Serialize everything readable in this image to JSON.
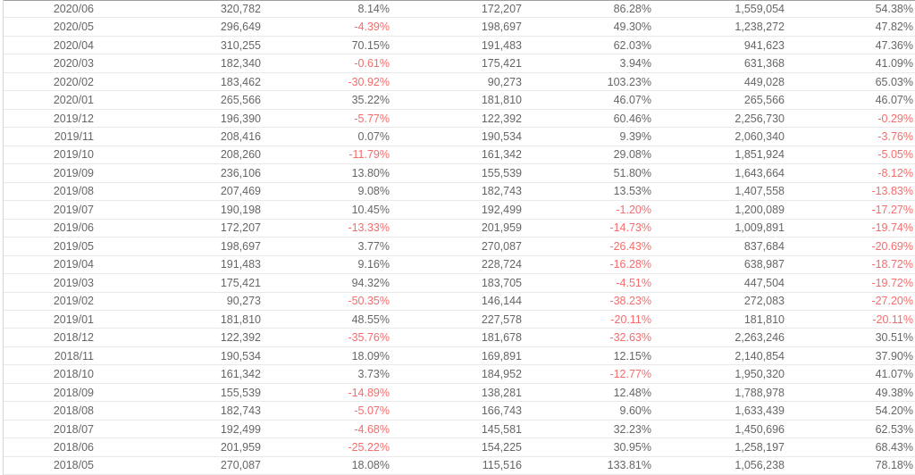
{
  "colors": {
    "text": "#666666",
    "negative_percent": "#f56c6c",
    "row_divider": "#e9e9e9",
    "left_border": "#d6d6d6",
    "top_rule": "#a0a0a0",
    "row_background": "#ffffff"
  },
  "chart_data": {
    "type": "table",
    "header_visible": false,
    "grid": "horizontal-row-dividers",
    "negative_values_colored_red": true,
    "rows": [
      [
        "2020/06",
        "320,782",
        "8.14%",
        "172,207",
        "86.28%",
        "1,559,054",
        "54.38%"
      ],
      [
        "2020/05",
        "296,649",
        "-4.39%",
        "198,697",
        "49.30%",
        "1,238,272",
        "47.82%"
      ],
      [
        "2020/04",
        "310,255",
        "70.15%",
        "191,483",
        "62.03%",
        "941,623",
        "47.36%"
      ],
      [
        "2020/03",
        "182,340",
        "-0.61%",
        "175,421",
        "3.94%",
        "631,368",
        "41.09%"
      ],
      [
        "2020/02",
        "183,462",
        "-30.92%",
        "90,273",
        "103.23%",
        "449,028",
        "65.03%"
      ],
      [
        "2020/01",
        "265,566",
        "35.22%",
        "181,810",
        "46.07%",
        "265,566",
        "46.07%"
      ],
      [
        "2019/12",
        "196,390",
        "-5.77%",
        "122,392",
        "60.46%",
        "2,256,730",
        "-0.29%"
      ],
      [
        "2019/11",
        "208,416",
        "0.07%",
        "190,534",
        "9.39%",
        "2,060,340",
        "-3.76%"
      ],
      [
        "2019/10",
        "208,260",
        "-11.79%",
        "161,342",
        "29.08%",
        "1,851,924",
        "-5.05%"
      ],
      [
        "2019/09",
        "236,106",
        "13.80%",
        "155,539",
        "51.80%",
        "1,643,664",
        "-8.12%"
      ],
      [
        "2019/08",
        "207,469",
        "9.08%",
        "182,743",
        "13.53%",
        "1,407,558",
        "-13.83%"
      ],
      [
        "2019/07",
        "190,198",
        "10.45%",
        "192,499",
        "-1.20%",
        "1,200,089",
        "-17.27%"
      ],
      [
        "2019/06",
        "172,207",
        "-13.33%",
        "201,959",
        "-14.73%",
        "1,009,891",
        "-19.74%"
      ],
      [
        "2019/05",
        "198,697",
        "3.77%",
        "270,087",
        "-26.43%",
        "837,684",
        "-20.69%"
      ],
      [
        "2019/04",
        "191,483",
        "9.16%",
        "228,724",
        "-16.28%",
        "638,987",
        "-18.72%"
      ],
      [
        "2019/03",
        "175,421",
        "94.32%",
        "183,705",
        "-4.51%",
        "447,504",
        "-19.72%"
      ],
      [
        "2019/02",
        "90,273",
        "-50.35%",
        "146,144",
        "-38.23%",
        "272,083",
        "-27.20%"
      ],
      [
        "2019/01",
        "181,810",
        "48.55%",
        "227,578",
        "-20.11%",
        "181,810",
        "-20.11%"
      ],
      [
        "2018/12",
        "122,392",
        "-35.76%",
        "181,678",
        "-32.63%",
        "2,263,246",
        "30.51%"
      ],
      [
        "2018/11",
        "190,534",
        "18.09%",
        "169,891",
        "12.15%",
        "2,140,854",
        "37.90%"
      ],
      [
        "2018/10",
        "161,342",
        "3.73%",
        "184,952",
        "-12.77%",
        "1,950,320",
        "41.07%"
      ],
      [
        "2018/09",
        "155,539",
        "-14.89%",
        "138,281",
        "12.48%",
        "1,788,978",
        "49.38%"
      ],
      [
        "2018/08",
        "182,743",
        "-5.07%",
        "166,743",
        "9.60%",
        "1,633,439",
        "54.20%"
      ],
      [
        "2018/07",
        "192,499",
        "-4.68%",
        "145,581",
        "32.23%",
        "1,450,696",
        "62.53%"
      ],
      [
        "2018/06",
        "201,959",
        "-25.22%",
        "154,225",
        "30.95%",
        "1,258,197",
        "68.43%"
      ],
      [
        "2018/05",
        "270,087",
        "18.08%",
        "115,516",
        "133.81%",
        "1,056,238",
        "78.18%"
      ]
    ]
  }
}
